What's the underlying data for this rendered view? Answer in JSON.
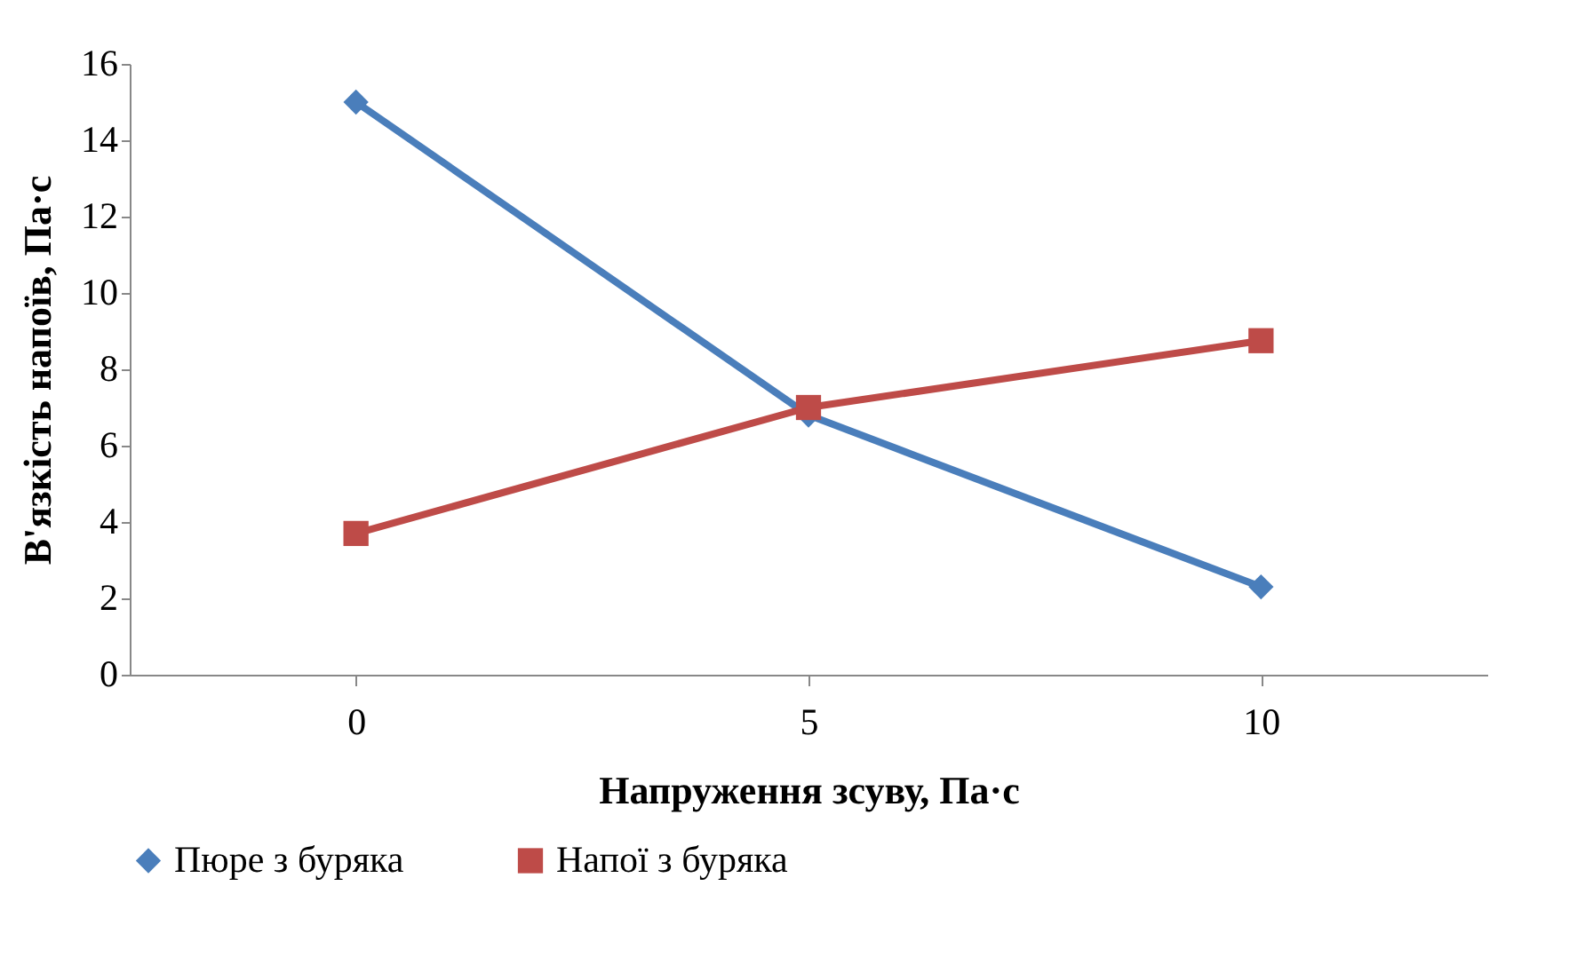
{
  "chart_data": {
    "type": "line",
    "xlabel": "Напруження зсуву, Па·с",
    "ylabel": "В'язкість напоїв, Па·с",
    "categories": [
      "0",
      "5",
      "10"
    ],
    "series": [
      {
        "name": "Пюре з буряка",
        "color": "#4a7ebb",
        "marker": "diamond",
        "values": [
          15,
          6.8,
          2.3
        ]
      },
      {
        "name": "Напої з буряка",
        "color": "#be4b48",
        "marker": "square",
        "values": [
          3.7,
          7.0,
          8.75
        ]
      }
    ],
    "ylim": [
      0,
      16
    ],
    "yticks": [
      0,
      2,
      4,
      6,
      8,
      10,
      12,
      14,
      16
    ],
    "grid": false,
    "legend": "bottom"
  }
}
